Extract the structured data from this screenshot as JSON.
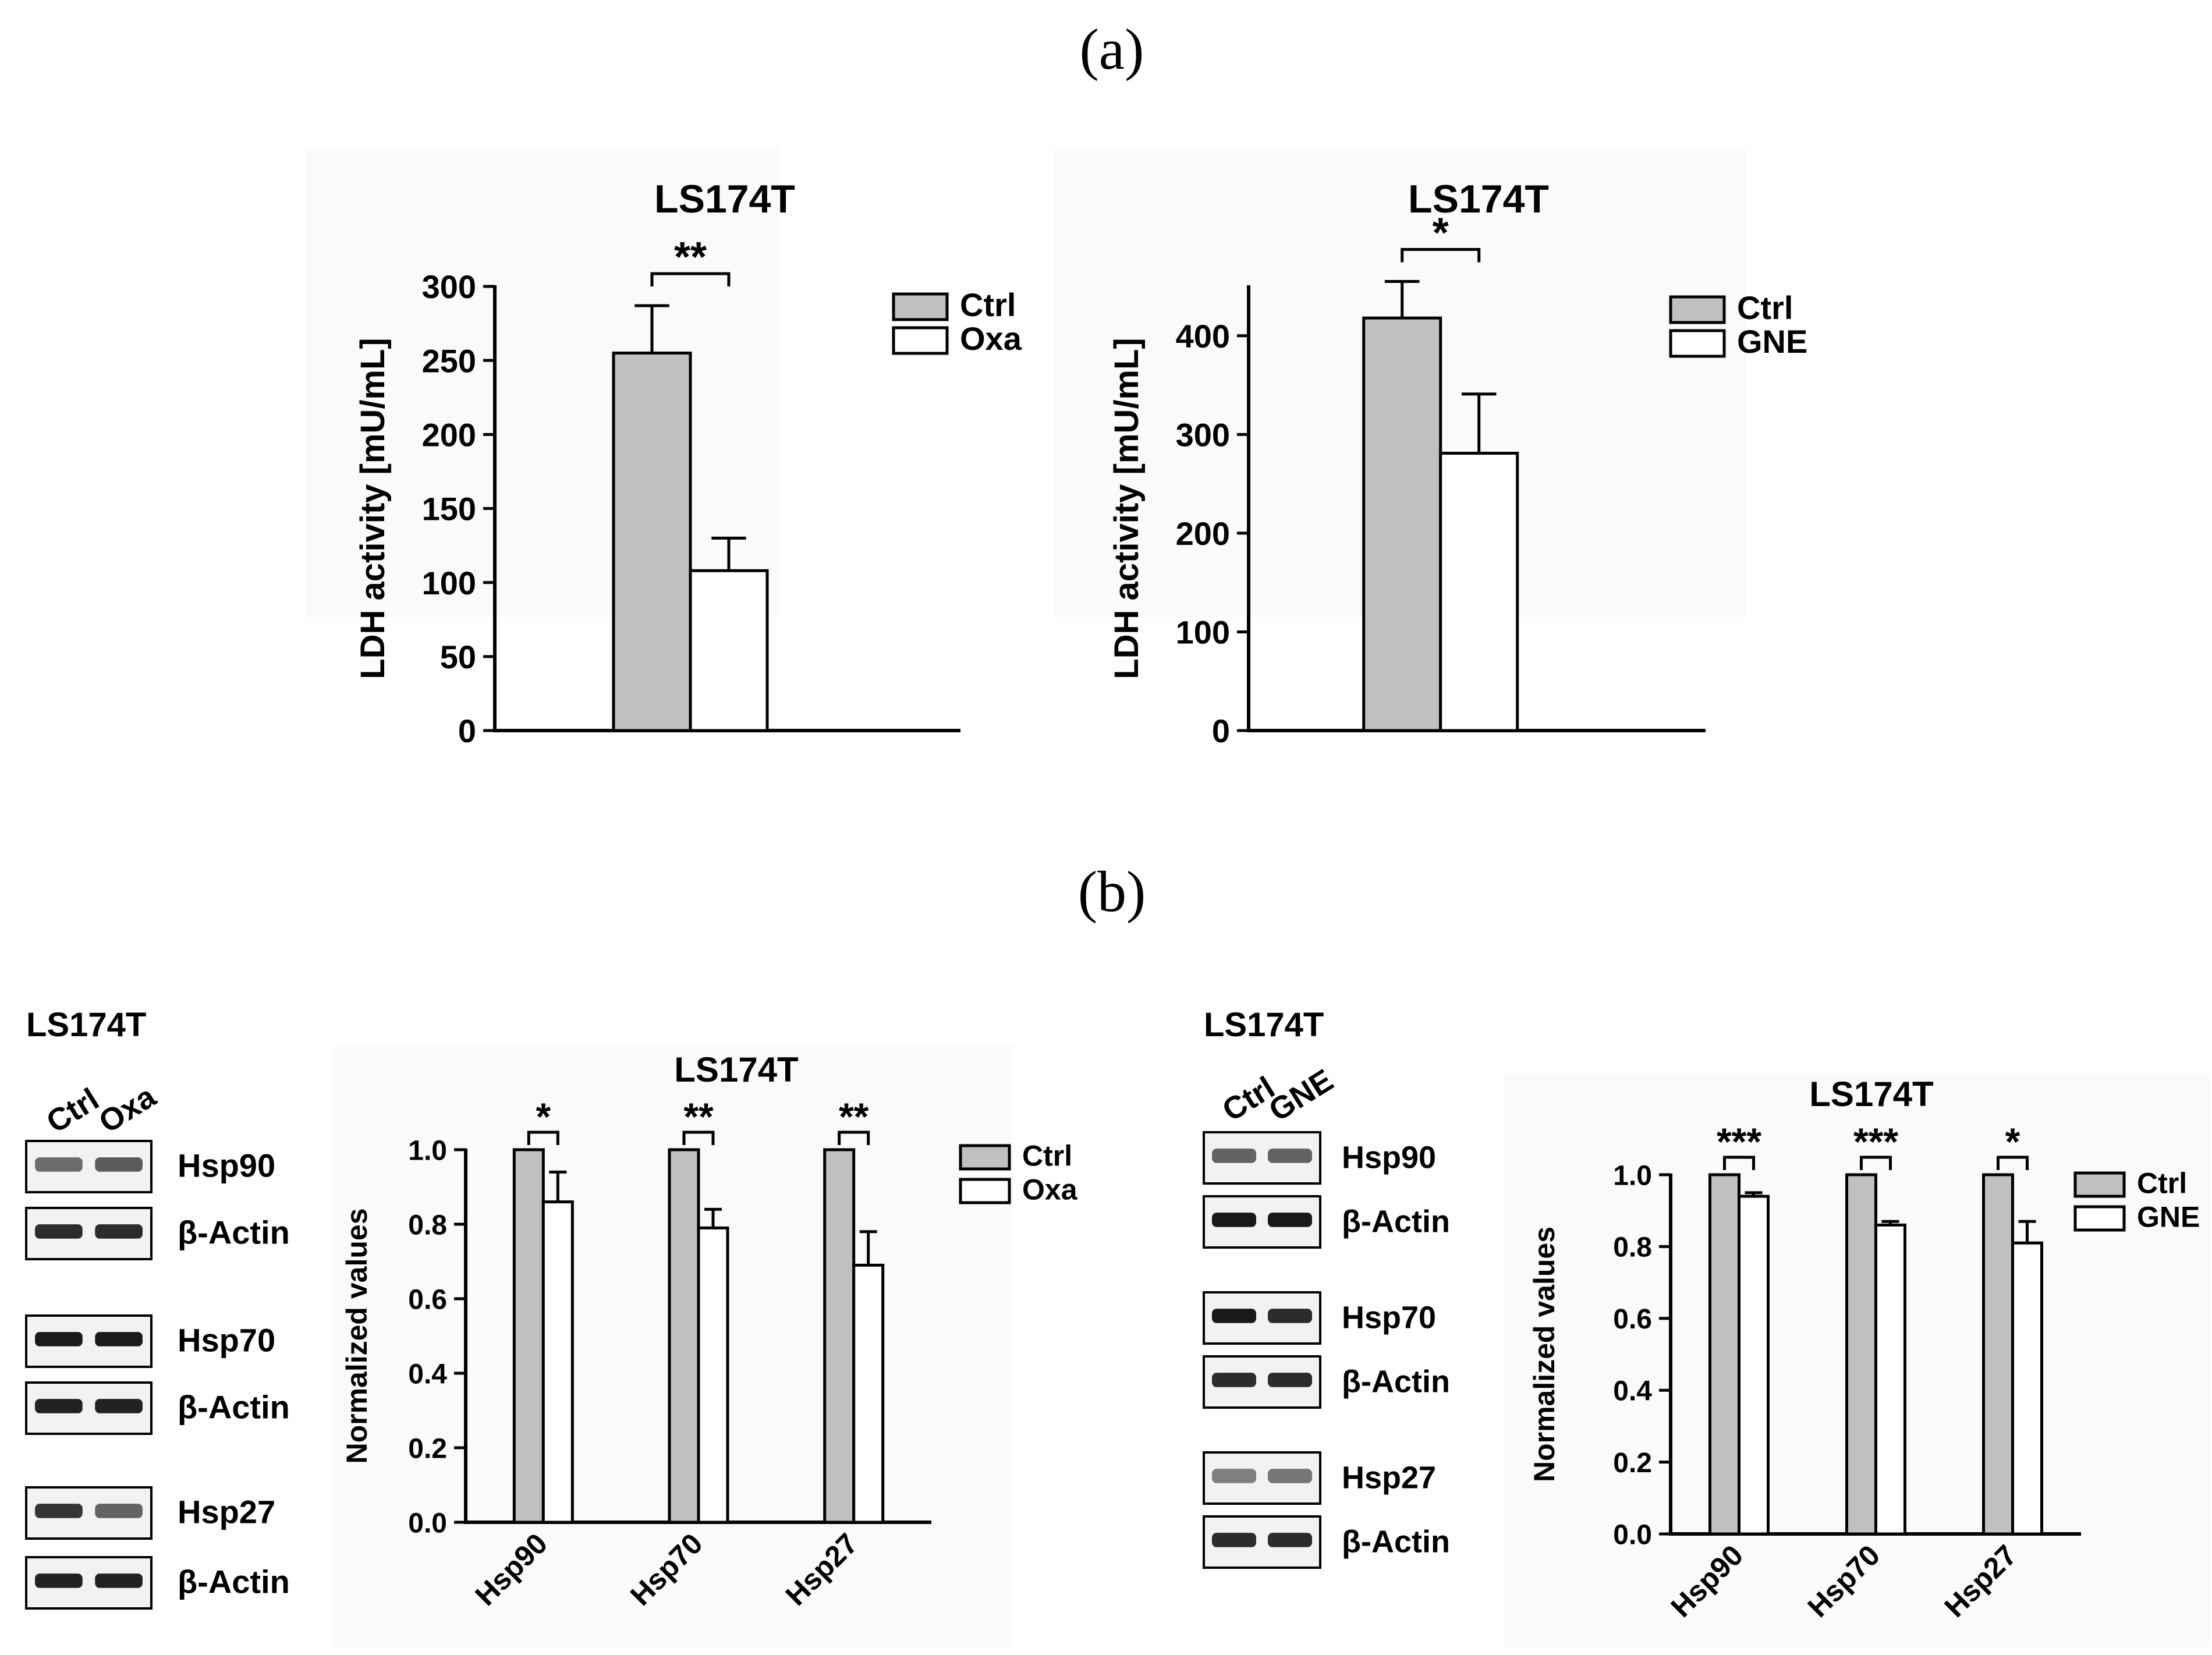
{
  "panels": {
    "a": "(a)",
    "b": "(b)"
  },
  "colors": {
    "ctrl_fill": "#c0c0c0",
    "treat_fill": "#ffffff",
    "stroke": "#000000",
    "panel_bg": "#fafafa"
  },
  "chart_data": [
    {
      "type": "bar",
      "title": "LS174T",
      "ylabel": "LDH activity [mU/mL]",
      "xlabel": "",
      "ylim": [
        0,
        300
      ],
      "yticks": [
        0,
        50,
        100,
        150,
        200,
        250,
        300
      ],
      "tick_decimals": 0,
      "categories": [
        ""
      ],
      "series": [
        {
          "name": "Ctrl",
          "values": [
            255
          ],
          "errors": [
            32
          ]
        },
        {
          "name": "Oxa",
          "values": [
            108
          ],
          "errors": [
            22
          ]
        }
      ],
      "significance": [
        "**"
      ],
      "legend": "top-right"
    },
    {
      "type": "bar",
      "title": "LS174T",
      "ylabel": "LDH activity [mU/mL]",
      "xlabel": "",
      "ylim": [
        0,
        450
      ],
      "yticks": [
        0,
        100,
        200,
        300,
        400
      ],
      "tick_decimals": 0,
      "categories": [
        ""
      ],
      "series": [
        {
          "name": "Ctrl",
          "values": [
            418
          ],
          "errors": [
            37
          ]
        },
        {
          "name": "GNE",
          "values": [
            281
          ],
          "errors": [
            60
          ]
        }
      ],
      "significance": [
        "*"
      ],
      "legend": "top-right"
    },
    {
      "type": "bar",
      "title": "LS174T",
      "ylabel": "Normalized values",
      "xlabel": "",
      "ylim": [
        0,
        1.0
      ],
      "yticks": [
        0,
        0.2,
        0.4,
        0.6,
        0.8,
        1.0
      ],
      "tick_decimals": 1,
      "categories": [
        "Hsp90",
        "Hsp70",
        "Hsp27"
      ],
      "series": [
        {
          "name": "Ctrl",
          "values": [
            1.0,
            1.0,
            1.0
          ],
          "errors": [
            0,
            0,
            0
          ]
        },
        {
          "name": "Oxa",
          "values": [
            0.86,
            0.79,
            0.69
          ],
          "errors": [
            0.08,
            0.05,
            0.09
          ]
        }
      ],
      "significance": [
        "*",
        "**",
        "**"
      ],
      "legend": "top-right"
    },
    {
      "type": "bar",
      "title": "LS174T",
      "ylabel": "Normalized values",
      "xlabel": "",
      "ylim": [
        0,
        1.0
      ],
      "yticks": [
        0,
        0.2,
        0.4,
        0.6,
        0.8,
        1.0
      ],
      "tick_decimals": 1,
      "categories": [
        "Hsp90",
        "Hsp70",
        "Hsp27"
      ],
      "series": [
        {
          "name": "Ctrl",
          "values": [
            1.0,
            1.0,
            1.0
          ],
          "errors": [
            0,
            0,
            0
          ]
        },
        {
          "name": "GNE",
          "values": [
            0.94,
            0.86,
            0.81
          ],
          "errors": [
            0.01,
            0.01,
            0.06
          ]
        }
      ],
      "significance": [
        "***",
        "***",
        "*"
      ],
      "legend": "top-right"
    }
  ],
  "blots": [
    {
      "title": "LS174T",
      "lanes": [
        "Ctrl",
        "Oxa"
      ],
      "rows": [
        {
          "label": "Hsp90",
          "intensity": [
            0.55,
            0.65
          ]
        },
        {
          "label": "β-Actin",
          "intensity": [
            0.9,
            0.9
          ]
        },
        {
          "label": "Hsp70",
          "intensity": [
            1.0,
            1.0
          ]
        },
        {
          "label": "β-Actin",
          "intensity": [
            0.95,
            0.95
          ]
        },
        {
          "label": "Hsp27",
          "intensity": [
            0.85,
            0.6
          ]
        },
        {
          "label": "β-Actin",
          "intensity": [
            0.95,
            0.95
          ]
        }
      ]
    },
    {
      "title": "LS174T",
      "lanes": [
        "Ctrl",
        "GNE"
      ],
      "rows": [
        {
          "label": "Hsp90",
          "intensity": [
            0.6,
            0.6
          ]
        },
        {
          "label": "β-Actin",
          "intensity": [
            1.0,
            1.0
          ]
        },
        {
          "label": "Hsp70",
          "intensity": [
            1.0,
            0.9
          ]
        },
        {
          "label": "β-Actin",
          "intensity": [
            0.9,
            0.9
          ]
        },
        {
          "label": "Hsp27",
          "intensity": [
            0.45,
            0.5
          ]
        },
        {
          "label": "β-Actin",
          "intensity": [
            0.9,
            0.9
          ]
        }
      ]
    }
  ]
}
